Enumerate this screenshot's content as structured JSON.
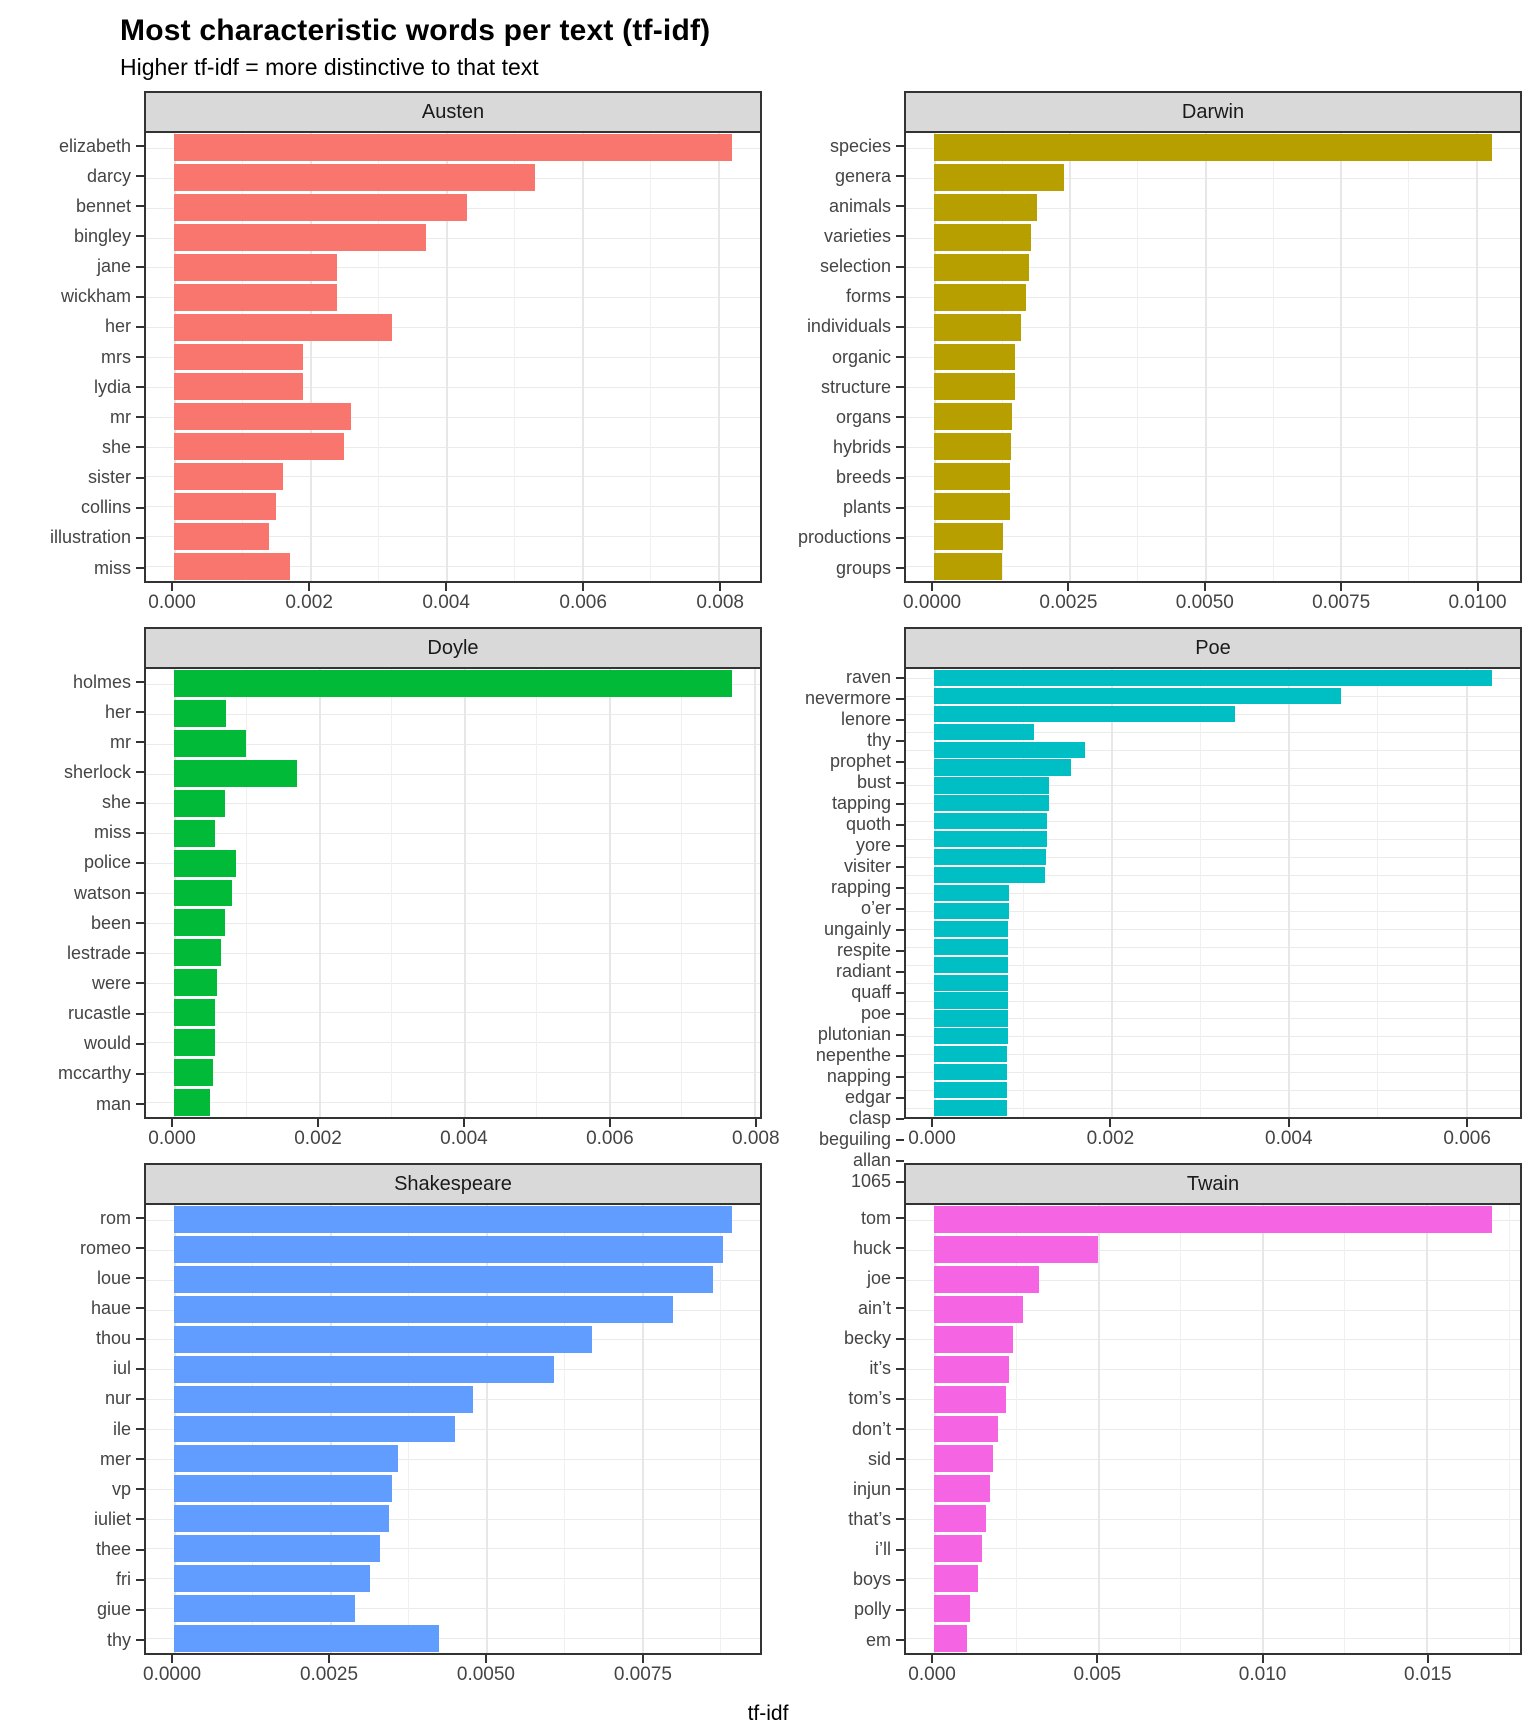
{
  "title": "Most characteristic words per text (tf-idf)",
  "subtitle": "Higher tf-idf = more distinctive to that text",
  "xlabel": "tf-idf",
  "panel_style": {
    "strip_background": "#D9D9D9",
    "panel_border": "#333333",
    "grid_major": "#E7E7E7",
    "axis_text_color": "#444444"
  },
  "chart_data": [
    {
      "type": "bar",
      "orientation": "horizontal",
      "facet": "Austen",
      "color": "#F8766D",
      "categories": [
        "elizabeth",
        "darcy",
        "bennet",
        "bingley",
        "jane",
        "wickham",
        "her",
        "mrs",
        "lydia",
        "mr",
        "she",
        "sister",
        "collins",
        "illustration",
        "miss"
      ],
      "values": [
        0.0082,
        0.0053,
        0.0043,
        0.0037,
        0.0024,
        0.0024,
        0.0032,
        0.0019,
        0.0019,
        0.0026,
        0.0025,
        0.0016,
        0.0015,
        0.0014,
        0.0017
      ],
      "x_ticks": [
        0,
        0.002,
        0.004,
        0.006,
        0.008
      ],
      "x_tick_labels": [
        "0.000",
        "0.002",
        "0.004",
        "0.006",
        "0.008"
      ]
    },
    {
      "type": "bar",
      "orientation": "horizontal",
      "facet": "Darwin",
      "color": "#B79F00",
      "categories": [
        "species",
        "genera",
        "animals",
        "varieties",
        "selection",
        "forms",
        "individuals",
        "organic",
        "structure",
        "organs",
        "hybrids",
        "breeds",
        "plants",
        "productions",
        "groups"
      ],
      "values": [
        0.0103,
        0.0024,
        0.0019,
        0.0018,
        0.00175,
        0.0017,
        0.0016,
        0.0015,
        0.0015,
        0.00145,
        0.00142,
        0.0014,
        0.0014,
        0.00128,
        0.00125
      ],
      "x_ticks": [
        0,
        0.0025,
        0.005,
        0.0075,
        0.01
      ],
      "x_tick_labels": [
        "0.0000",
        "0.0025",
        "0.0050",
        "0.0075",
        "0.0100"
      ]
    },
    {
      "type": "bar",
      "orientation": "horizontal",
      "facet": "Doyle",
      "color": "#00BA38",
      "categories": [
        "holmes",
        "her",
        "mr",
        "sherlock",
        "she",
        "miss",
        "police",
        "watson",
        "been",
        "lestrade",
        "were",
        "rucastle",
        "would",
        "mccarthy",
        "man"
      ],
      "values": [
        0.0077,
        0.00072,
        0.001,
        0.0017,
        0.0007,
        0.00056,
        0.00085,
        0.0008,
        0.0007,
        0.00065,
        0.0006,
        0.00057,
        0.00056,
        0.00054,
        0.0005
      ],
      "x_ticks": [
        0,
        0.002,
        0.004,
        0.006,
        0.008
      ],
      "x_tick_labels": [
        "0.000",
        "0.002",
        "0.004",
        "0.006",
        "0.008"
      ]
    },
    {
      "type": "bar",
      "orientation": "horizontal",
      "facet": "Poe",
      "color": "#00BFC4",
      "categories": [
        "raven",
        "nevermore",
        "lenore",
        "thy",
        "prophet",
        "bust",
        "tapping",
        "quoth",
        "yore",
        "visiter",
        "rapping",
        "o’er",
        "ungainly",
        "respite",
        "radiant",
        "quaff",
        "poe",
        "plutonian",
        "nepenthe",
        "napping",
        "edgar",
        "clasp",
        "beguiling",
        "allan",
        "1065"
      ],
      "values": [
        0.0063,
        0.0046,
        0.0034,
        0.00113,
        0.0017,
        0.00155,
        0.0013,
        0.0013,
        0.00128,
        0.00128,
        0.00127,
        0.00125,
        0.00085,
        0.00085,
        0.00084,
        0.00084,
        0.00084,
        0.00084,
        0.00084,
        0.00084,
        0.00084,
        0.00083,
        0.00083,
        0.00083,
        0.00083
      ],
      "x_ticks": [
        0,
        0.002,
        0.004,
        0.006
      ],
      "x_tick_labels": [
        "0.000",
        "0.002",
        "0.004",
        "0.006"
      ]
    },
    {
      "type": "bar",
      "orientation": "horizontal",
      "facet": "Shakespeare",
      "color": "#619CFF",
      "categories": [
        "rom",
        "romeo",
        "loue",
        "haue",
        "thou",
        "iul",
        "nur",
        "ile",
        "mer",
        "vp",
        "iuliet",
        "thee",
        "fri",
        "giue",
        "thy"
      ],
      "values": [
        0.00895,
        0.0088,
        0.00865,
        0.008,
        0.0067,
        0.0061,
        0.0048,
        0.0045,
        0.0036,
        0.0035,
        0.00345,
        0.0033,
        0.00315,
        0.0029,
        0.00425
      ],
      "x_ticks": [
        0,
        0.0025,
        0.005,
        0.0075
      ],
      "x_tick_labels": [
        "0.0000",
        "0.0025",
        "0.0050",
        "0.0075"
      ]
    },
    {
      "type": "bar",
      "orientation": "horizontal",
      "facet": "Twain",
      "color": "#F564E3",
      "categories": [
        "tom",
        "huck",
        "joe",
        "ain’t",
        "becky",
        "it’s",
        "tom’s",
        "don’t",
        "sid",
        "injun",
        "that’s",
        "i’ll",
        "boys",
        "polly",
        "em"
      ],
      "values": [
        0.017,
        0.005,
        0.0032,
        0.0027,
        0.0024,
        0.0023,
        0.0022,
        0.00195,
        0.0018,
        0.0017,
        0.0016,
        0.00145,
        0.00135,
        0.0011,
        0.001
      ],
      "x_ticks": [
        0,
        0.005,
        0.01,
        0.015
      ],
      "x_tick_labels": [
        "0.000",
        "0.005",
        "0.010",
        "0.015"
      ]
    }
  ]
}
